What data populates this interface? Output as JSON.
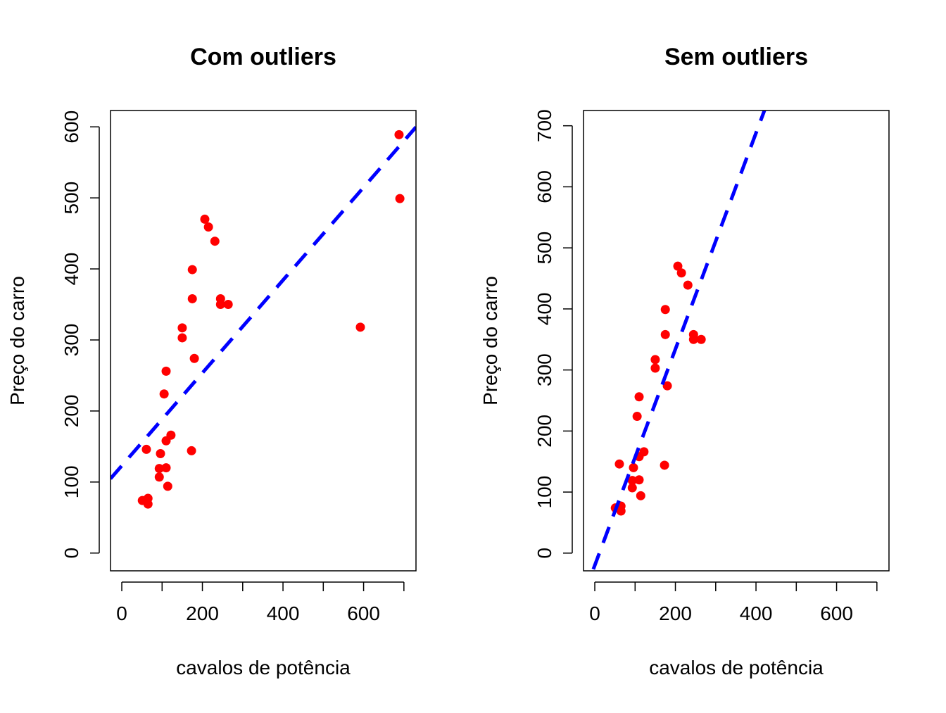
{
  "chart_data": [
    {
      "type": "scatter",
      "title": "Com outliers",
      "xlabel": "cavalos de potência",
      "ylabel": "Preço do carro",
      "xlim": [
        -28,
        730
      ],
      "ylim": [
        -25,
        623
      ],
      "xticks": [
        0,
        100,
        200,
        300,
        400,
        500,
        600,
        700
      ],
      "xtick_labels": [
        "0",
        "",
        "200",
        "",
        "400",
        "",
        "600",
        ""
      ],
      "yticks": [
        0,
        100,
        200,
        300,
        400,
        500,
        600
      ],
      "grid": false,
      "point_color": "#ff0000",
      "line_color": "#0000ff",
      "points": [
        [
          206,
          470
        ],
        [
          215,
          459
        ],
        [
          231,
          439
        ],
        [
          175,
          399
        ],
        [
          175,
          358
        ],
        [
          245,
          358
        ],
        [
          245,
          350
        ],
        [
          264,
          350
        ],
        [
          150,
          317
        ],
        [
          150,
          303
        ],
        [
          180,
          274
        ],
        [
          110,
          256
        ],
        [
          105,
          224
        ],
        [
          122,
          166
        ],
        [
          110,
          158
        ],
        [
          61,
          146
        ],
        [
          173,
          144
        ],
        [
          96,
          140
        ],
        [
          93,
          119
        ],
        [
          110,
          120
        ],
        [
          93,
          107
        ],
        [
          114,
          94
        ],
        [
          51,
          74
        ],
        [
          65,
          77
        ],
        [
          65,
          69
        ],
        [
          592,
          318
        ],
        [
          688,
          589
        ],
        [
          690,
          499
        ]
      ],
      "fit_line": {
        "slope": 0.653,
        "intercept": 123,
        "style": "dashed"
      }
    },
    {
      "type": "scatter",
      "title": "Sem outliers",
      "xlabel": "cavalos de potência",
      "ylabel": "Preço do carro",
      "xlim": [
        -28,
        730
      ],
      "ylim": [
        -29,
        725
      ],
      "xticks": [
        0,
        100,
        200,
        300,
        400,
        500,
        600,
        700
      ],
      "xtick_labels": [
        "0",
        "",
        "200",
        "",
        "400",
        "",
        "600",
        ""
      ],
      "yticks": [
        0,
        100,
        200,
        300,
        400,
        500,
        600,
        700
      ],
      "grid": false,
      "point_color": "#ff0000",
      "line_color": "#0000ff",
      "points": [
        [
          206,
          470
        ],
        [
          215,
          459
        ],
        [
          231,
          439
        ],
        [
          175,
          399
        ],
        [
          175,
          358
        ],
        [
          245,
          358
        ],
        [
          245,
          350
        ],
        [
          264,
          350
        ],
        [
          150,
          317
        ],
        [
          150,
          303
        ],
        [
          180,
          274
        ],
        [
          110,
          256
        ],
        [
          105,
          224
        ],
        [
          122,
          166
        ],
        [
          110,
          158
        ],
        [
          61,
          146
        ],
        [
          173,
          144
        ],
        [
          96,
          140
        ],
        [
          93,
          119
        ],
        [
          110,
          120
        ],
        [
          93,
          107
        ],
        [
          114,
          94
        ],
        [
          51,
          74
        ],
        [
          65,
          77
        ],
        [
          65,
          69
        ]
      ],
      "fit_line": {
        "slope": 1.77,
        "intercept": -20,
        "style": "dashed"
      }
    }
  ]
}
